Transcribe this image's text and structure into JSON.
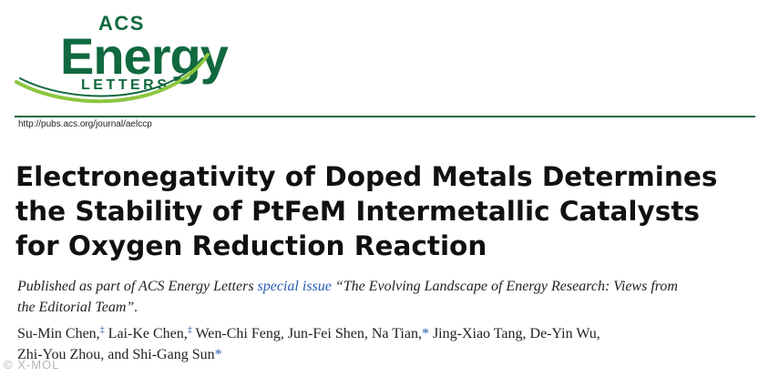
{
  "masthead": {
    "acs": "ACS",
    "energy": "Energy",
    "letters": "LETTERS",
    "brand_color": "#11693f",
    "swoosh_color": "#8cc63f"
  },
  "url": "http://pubs.acs.org/journal/aelccp",
  "title_lines": [
    "Electronegativity of Doped Metals Determines",
    "the Stability of PtFeM Intermetallic Catalysts",
    "for Oxygen Reduction Reaction"
  ],
  "published": {
    "line1_prefix": "Published as part of ACS Energy Letters",
    "link": "special issue",
    "line1_suffix": "“The Evolving Landscape of Energy Research: Views from",
    "line2": "the Editorial Team”."
  },
  "authors": {
    "line1": [
      {
        "name": "Su-Min Chen,",
        "mark": "‡"
      },
      {
        "name": " Lai-Ke Chen,",
        "mark": "‡"
      },
      {
        "name": " Wen-Chi Feng, Jun-Fei Shen, Na Tian,",
        "star": "*"
      },
      {
        "name": " Jing-Xiao Tang, De-Yin Wu,"
      }
    ],
    "line2_text": "Zhi-You Zhou, and Shi-Gang Sun",
    "line2_star": "*"
  },
  "watermark": "© X-MOL"
}
